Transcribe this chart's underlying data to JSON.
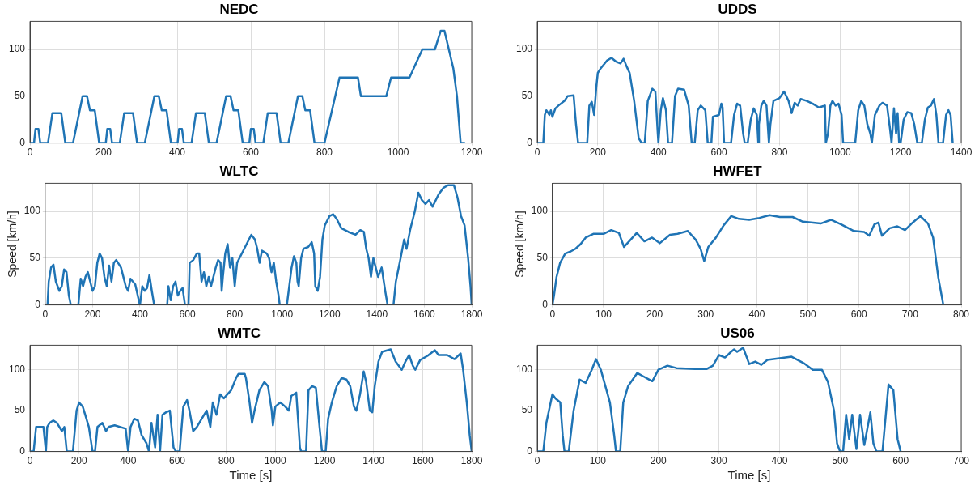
{
  "chart_data": [
    {
      "type": "line",
      "title": "NEDC",
      "color": "#1f74b5",
      "grid": true,
      "xlim": [
        0,
        1200
      ],
      "xticks": [
        0,
        200,
        400,
        600,
        800,
        1000,
        1200
      ],
      "ylim": [
        0,
        130
      ],
      "yticks": [
        0,
        50,
        100
      ],
      "x": [
        0,
        11,
        15,
        23,
        28,
        49,
        61,
        85,
        96,
        117,
        143,
        155,
        163,
        176,
        188,
        195,
        206,
        210,
        218,
        223,
        244,
        256,
        280,
        291,
        312,
        338,
        350,
        358,
        371,
        383,
        390,
        401,
        405,
        413,
        418,
        439,
        451,
        475,
        486,
        507,
        533,
        545,
        553,
        566,
        578,
        585,
        596,
        600,
        608,
        613,
        634,
        646,
        670,
        681,
        702,
        728,
        740,
        748,
        761,
        773,
        780,
        800,
        841,
        891,
        899,
        968,
        981,
        1031,
        1066,
        1100,
        1116,
        1126,
        1150,
        1160,
        1170,
        1180
      ],
      "values": [
        0,
        0,
        15,
        15,
        0,
        0,
        32,
        32,
        0,
        0,
        50,
        50,
        35,
        35,
        0,
        0,
        0,
        15,
        15,
        0,
        0,
        32,
        32,
        0,
        0,
        50,
        50,
        35,
        35,
        0,
        0,
        0,
        15,
        15,
        0,
        0,
        32,
        32,
        0,
        0,
        50,
        50,
        35,
        35,
        0,
        0,
        0,
        15,
        15,
        0,
        0,
        32,
        32,
        0,
        0,
        50,
        50,
        35,
        35,
        0,
        0,
        0,
        70,
        70,
        50,
        50,
        70,
        70,
        100,
        100,
        120,
        120,
        80,
        50,
        0,
        0
      ]
    },
    {
      "type": "line",
      "title": "UDDS",
      "color": "#1f74b5",
      "grid": true,
      "xlim": [
        0,
        1400
      ],
      "xticks": [
        0,
        200,
        400,
        600,
        800,
        1000,
        1200,
        1400
      ],
      "ylim": [
        0,
        130
      ],
      "yticks": [
        0,
        50,
        100
      ],
      "x": [
        0,
        20,
        25,
        30,
        40,
        45,
        50,
        60,
        70,
        90,
        100,
        120,
        128,
        135,
        165,
        172,
        180,
        188,
        195,
        200,
        210,
        230,
        245,
        260,
        275,
        285,
        295,
        305,
        320,
        335,
        345,
        355,
        365,
        380,
        390,
        398,
        400,
        408,
        415,
        425,
        432,
        445,
        455,
        465,
        485,
        500,
        510,
        520,
        530,
        540,
        555,
        563,
        575,
        580,
        600,
        608,
        612,
        617,
        640,
        650,
        660,
        670,
        680,
        685,
        695,
        705,
        715,
        725,
        730,
        732,
        740,
        748,
        757,
        765,
        770,
        780,
        800,
        815,
        830,
        840,
        850,
        860,
        870,
        890,
        910,
        930,
        950,
        953,
        960,
        968,
        975,
        985,
        995,
        1005,
        1010,
        1050,
        1060,
        1070,
        1080,
        1090,
        1100,
        1105,
        1115,
        1130,
        1140,
        1155,
        1165,
        1170,
        1178,
        1185,
        1190,
        1195,
        1200,
        1210,
        1222,
        1235,
        1245,
        1255,
        1270,
        1280,
        1290,
        1300,
        1310,
        1318,
        1325,
        1340,
        1350,
        1358,
        1365,
        1372
      ],
      "values": [
        0,
        0,
        30,
        35,
        30,
        35,
        28,
        37,
        40,
        45,
        50,
        51,
        20,
        0,
        0,
        40,
        44,
        30,
        60,
        75,
        80,
        88,
        91,
        87,
        85,
        90,
        82,
        75,
        45,
        5,
        0,
        0,
        45,
        58,
        55,
        10,
        0,
        35,
        48,
        35,
        0,
        0,
        50,
        58,
        57,
        40,
        0,
        0,
        35,
        40,
        35,
        0,
        0,
        28,
        30,
        42,
        38,
        0,
        0,
        30,
        42,
        40,
        10,
        0,
        0,
        25,
        37,
        30,
        0,
        20,
        40,
        45,
        40,
        0,
        20,
        45,
        48,
        55,
        45,
        32,
        43,
        40,
        47,
        45,
        42,
        38,
        40,
        0,
        10,
        40,
        45,
        40,
        42,
        30,
        0,
        0,
        35,
        45,
        40,
        20,
        10,
        0,
        30,
        40,
        43,
        40,
        15,
        0,
        37,
        10,
        32,
        0,
        0,
        25,
        33,
        32,
        20,
        0,
        0,
        25,
        38,
        40,
        47,
        30,
        0,
        0,
        30,
        35,
        30,
        0
      ]
    },
    {
      "type": "line",
      "title": "WLTC",
      "ylabel": "Speed [km/h]",
      "color": "#1f74b5",
      "grid": true,
      "xlim": [
        0,
        1800
      ],
      "xticks": [
        0,
        200,
        400,
        600,
        800,
        1000,
        1200,
        1400,
        1600,
        1800
      ],
      "ylim": [
        0,
        130
      ],
      "yticks": [
        0,
        50,
        100
      ],
      "x": [
        0,
        10,
        15,
        25,
        35,
        45,
        60,
        70,
        80,
        90,
        100,
        108,
        140,
        150,
        160,
        170,
        180,
        190,
        200,
        210,
        220,
        230,
        240,
        250,
        260,
        270,
        280,
        290,
        300,
        320,
        340,
        350,
        360,
        380,
        395,
        400,
        410,
        420,
        430,
        440,
        450,
        460,
        515,
        520,
        530,
        540,
        550,
        560,
        570,
        580,
        590,
        605,
        610,
        625,
        640,
        650,
        660,
        670,
        680,
        690,
        700,
        720,
        730,
        740,
        745,
        750,
        760,
        770,
        780,
        790,
        800,
        810,
        830,
        850,
        870,
        885,
        895,
        905,
        915,
        935,
        945,
        955,
        965,
        975,
        985,
        990,
        1020,
        1040,
        1050,
        1060,
        1065,
        1070,
        1080,
        1090,
        1110,
        1125,
        1135,
        1140,
        1150,
        1160,
        1170,
        1180,
        1200,
        1215,
        1230,
        1250,
        1280,
        1310,
        1330,
        1345,
        1355,
        1365,
        1375,
        1385,
        1395,
        1405,
        1420,
        1435,
        1445,
        1470,
        1480,
        1500,
        1515,
        1525,
        1540,
        1560,
        1575,
        1590,
        1605,
        1620,
        1635,
        1660,
        1680,
        1700,
        1725,
        1740,
        1755,
        1770,
        1785,
        1795,
        1800
      ],
      "values": [
        0,
        0,
        25,
        40,
        43,
        25,
        15,
        20,
        38,
        35,
        10,
        0,
        0,
        28,
        20,
        30,
        35,
        25,
        15,
        20,
        45,
        55,
        50,
        30,
        20,
        42,
        25,
        45,
        48,
        40,
        20,
        15,
        28,
        22,
        5,
        0,
        20,
        15,
        18,
        32,
        15,
        0,
        0,
        20,
        5,
        20,
        25,
        10,
        15,
        18,
        0,
        0,
        45,
        48,
        55,
        55,
        25,
        35,
        20,
        30,
        20,
        40,
        48,
        45,
        15,
        30,
        55,
        65,
        40,
        50,
        20,
        45,
        55,
        65,
        75,
        70,
        60,
        45,
        58,
        55,
        50,
        35,
        45,
        25,
        10,
        0,
        0,
        40,
        52,
        45,
        25,
        20,
        50,
        60,
        62,
        67,
        55,
        20,
        15,
        30,
        70,
        85,
        95,
        97,
        92,
        82,
        78,
        75,
        80,
        78,
        60,
        50,
        30,
        50,
        40,
        30,
        40,
        15,
        0,
        0,
        25,
        50,
        70,
        60,
        80,
        100,
        120,
        112,
        108,
        112,
        105,
        118,
        125,
        128,
        128,
        115,
        95,
        85,
        50,
        20,
        0
      ]
    },
    {
      "type": "line",
      "title": "HWFET",
      "ylabel": "Speed [km/h]",
      "color": "#1f74b5",
      "grid": true,
      "xlim": [
        0,
        800
      ],
      "xticks": [
        0,
        100,
        200,
        300,
        400,
        500,
        600,
        700,
        800
      ],
      "ylim": [
        0,
        130
      ],
      "yticks": [
        0,
        50,
        100
      ],
      "x": [
        0,
        3,
        8,
        15,
        25,
        35,
        45,
        55,
        65,
        80,
        100,
        115,
        130,
        140,
        150,
        165,
        180,
        195,
        210,
        230,
        245,
        265,
        280,
        290,
        297,
        305,
        320,
        335,
        350,
        365,
        385,
        405,
        425,
        445,
        470,
        490,
        510,
        525,
        545,
        565,
        590,
        610,
        620,
        630,
        638,
        645,
        660,
        675,
        690,
        705,
        720,
        735,
        745,
        755,
        765
      ],
      "values": [
        0,
        10,
        30,
        45,
        55,
        57,
        60,
        65,
        72,
        76,
        76,
        80,
        77,
        62,
        68,
        77,
        68,
        72,
        66,
        75,
        76,
        79,
        70,
        60,
        47,
        62,
        72,
        85,
        95,
        92,
        91,
        93,
        96,
        94,
        94,
        89,
        88,
        87,
        91,
        86,
        79,
        78,
        74,
        86,
        88,
        74,
        82,
        84,
        80,
        88,
        95,
        87,
        72,
        30,
        0
      ]
    },
    {
      "type": "line",
      "title": "WMTC",
      "xlabel": "Time [s]",
      "color": "#1f74b5",
      "grid": true,
      "xlim": [
        0,
        1800
      ],
      "xticks": [
        0,
        200,
        400,
        600,
        800,
        1000,
        1200,
        1400,
        1600,
        1800
      ],
      "ylim": [
        0,
        130
      ],
      "yticks": [
        0,
        50,
        100
      ],
      "x": [
        0,
        15,
        25,
        45,
        55,
        65,
        70,
        80,
        95,
        110,
        120,
        130,
        140,
        150,
        175,
        190,
        200,
        215,
        225,
        240,
        255,
        265,
        275,
        295,
        310,
        320,
        345,
        390,
        400,
        410,
        425,
        440,
        455,
        475,
        485,
        495,
        510,
        520,
        530,
        540,
        555,
        570,
        585,
        595,
        610,
        625,
        640,
        650,
        665,
        680,
        700,
        720,
        735,
        745,
        760,
        775,
        790,
        805,
        820,
        840,
        850,
        875,
        880,
        895,
        905,
        915,
        935,
        955,
        970,
        985,
        990,
        1000,
        1020,
        1040,
        1055,
        1065,
        1085,
        1090,
        1100,
        1105,
        1125,
        1135,
        1150,
        1165,
        1180,
        1190,
        1205,
        1215,
        1230,
        1250,
        1270,
        1290,
        1305,
        1320,
        1330,
        1345,
        1360,
        1370,
        1385,
        1395,
        1405,
        1420,
        1435,
        1470,
        1490,
        1515,
        1530,
        1545,
        1560,
        1570,
        1590,
        1620,
        1650,
        1665,
        1700,
        1730,
        1755,
        1765,
        1780,
        1792,
        1800
      ],
      "values": [
        0,
        0,
        30,
        30,
        30,
        0,
        30,
        35,
        38,
        35,
        30,
        25,
        30,
        0,
        0,
        50,
        60,
        55,
        45,
        30,
        0,
        0,
        30,
        35,
        25,
        30,
        32,
        28,
        0,
        30,
        40,
        38,
        20,
        10,
        0,
        35,
        5,
        45,
        0,
        45,
        48,
        50,
        5,
        0,
        0,
        55,
        63,
        50,
        25,
        30,
        40,
        50,
        30,
        60,
        45,
        70,
        65,
        70,
        75,
        90,
        95,
        95,
        90,
        60,
        35,
        50,
        75,
        85,
        80,
        50,
        32,
        55,
        60,
        55,
        50,
        68,
        72,
        50,
        5,
        0,
        0,
        75,
        80,
        78,
        30,
        0,
        0,
        40,
        60,
        80,
        90,
        88,
        80,
        55,
        50,
        70,
        98,
        85,
        50,
        48,
        80,
        110,
        122,
        125,
        110,
        100,
        110,
        118,
        105,
        100,
        112,
        117,
        124,
        118,
        118,
        113,
        120,
        100,
        60,
        20,
        0
      ]
    },
    {
      "type": "line",
      "title": "US06",
      "xlabel": "Time [s]",
      "color": "#1f74b5",
      "grid": true,
      "xlim": [
        0,
        700
      ],
      "xticks": [
        0,
        100,
        200,
        300,
        400,
        500,
        600,
        700
      ],
      "ylim": [
        0,
        130
      ],
      "yticks": [
        0,
        50,
        100
      ],
      "x": [
        0,
        10,
        15,
        25,
        30,
        38,
        42,
        45,
        52,
        60,
        70,
        80,
        90,
        97,
        105,
        120,
        127,
        130,
        137,
        142,
        150,
        165,
        175,
        185,
        190,
        200,
        215,
        230,
        260,
        280,
        290,
        300,
        310,
        320,
        325,
        330,
        340,
        350,
        360,
        370,
        380,
        400,
        420,
        440,
        455,
        470,
        480,
        490,
        495,
        500,
        505,
        510,
        515,
        520,
        527,
        533,
        540,
        550,
        555,
        560,
        570,
        580,
        588,
        595,
        600
      ],
      "values": [
        0,
        0,
        35,
        70,
        65,
        60,
        20,
        0,
        0,
        50,
        88,
        84,
        100,
        113,
        100,
        60,
        20,
        0,
        0,
        60,
        80,
        96,
        92,
        88,
        86,
        100,
        105,
        102,
        101,
        101,
        105,
        118,
        115,
        122,
        125,
        122,
        127,
        107,
        110,
        106,
        112,
        114,
        116,
        108,
        100,
        100,
        85,
        50,
        10,
        0,
        0,
        45,
        15,
        45,
        3,
        45,
        8,
        48,
        10,
        0,
        0,
        82,
        75,
        15,
        0
      ]
    }
  ]
}
